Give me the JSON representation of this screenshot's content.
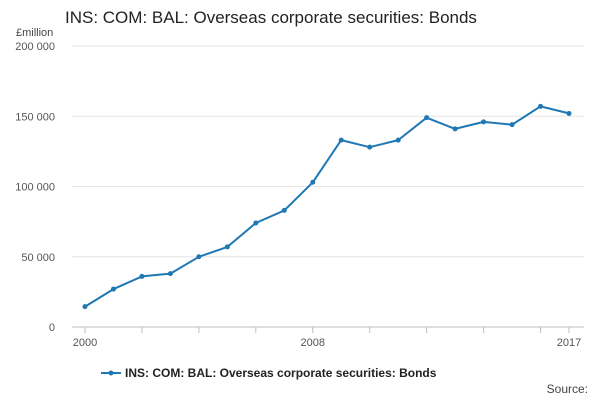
{
  "chart_data": {
    "type": "line",
    "title": "INS: COM: BAL: Overseas corporate securities: Bonds",
    "unit": "£million",
    "source_label": "Source:",
    "x": [
      2000,
      2001,
      2002,
      2003,
      2004,
      2005,
      2006,
      2007,
      2008,
      2009,
      2010,
      2011,
      2012,
      2013,
      2014,
      2015,
      2016,
      2017
    ],
    "series": [
      {
        "name": "INS: COM: BAL: Overseas corporate securities: Bonds",
        "color": "#1f77b4",
        "values": [
          14500,
          27000,
          36000,
          38000,
          50000,
          57000,
          74000,
          83000,
          103000,
          133000,
          128000,
          133000,
          149000,
          141000,
          146000,
          144000,
          157000,
          152000
        ]
      }
    ],
    "xlim": [
      2000,
      2017
    ],
    "ylim": [
      0,
      200000
    ],
    "x_tick_labels": [
      {
        "value": 2000,
        "label": "2000"
      },
      {
        "value": 2008,
        "label": "2008"
      },
      {
        "value": 2017,
        "label": "2017"
      }
    ],
    "x_minor_ticks": [
      2000,
      2002,
      2004,
      2006,
      2008,
      2010,
      2012,
      2014,
      2016,
      2017
    ],
    "y_ticks": [
      {
        "value": 0,
        "label": "0"
      },
      {
        "value": 50000,
        "label": "50 000"
      },
      {
        "value": 100000,
        "label": "100 000"
      },
      {
        "value": 150000,
        "label": "150 000"
      },
      {
        "value": 200000,
        "label": "200 000"
      }
    ],
    "grid": true,
    "legend_position": "bottom"
  }
}
